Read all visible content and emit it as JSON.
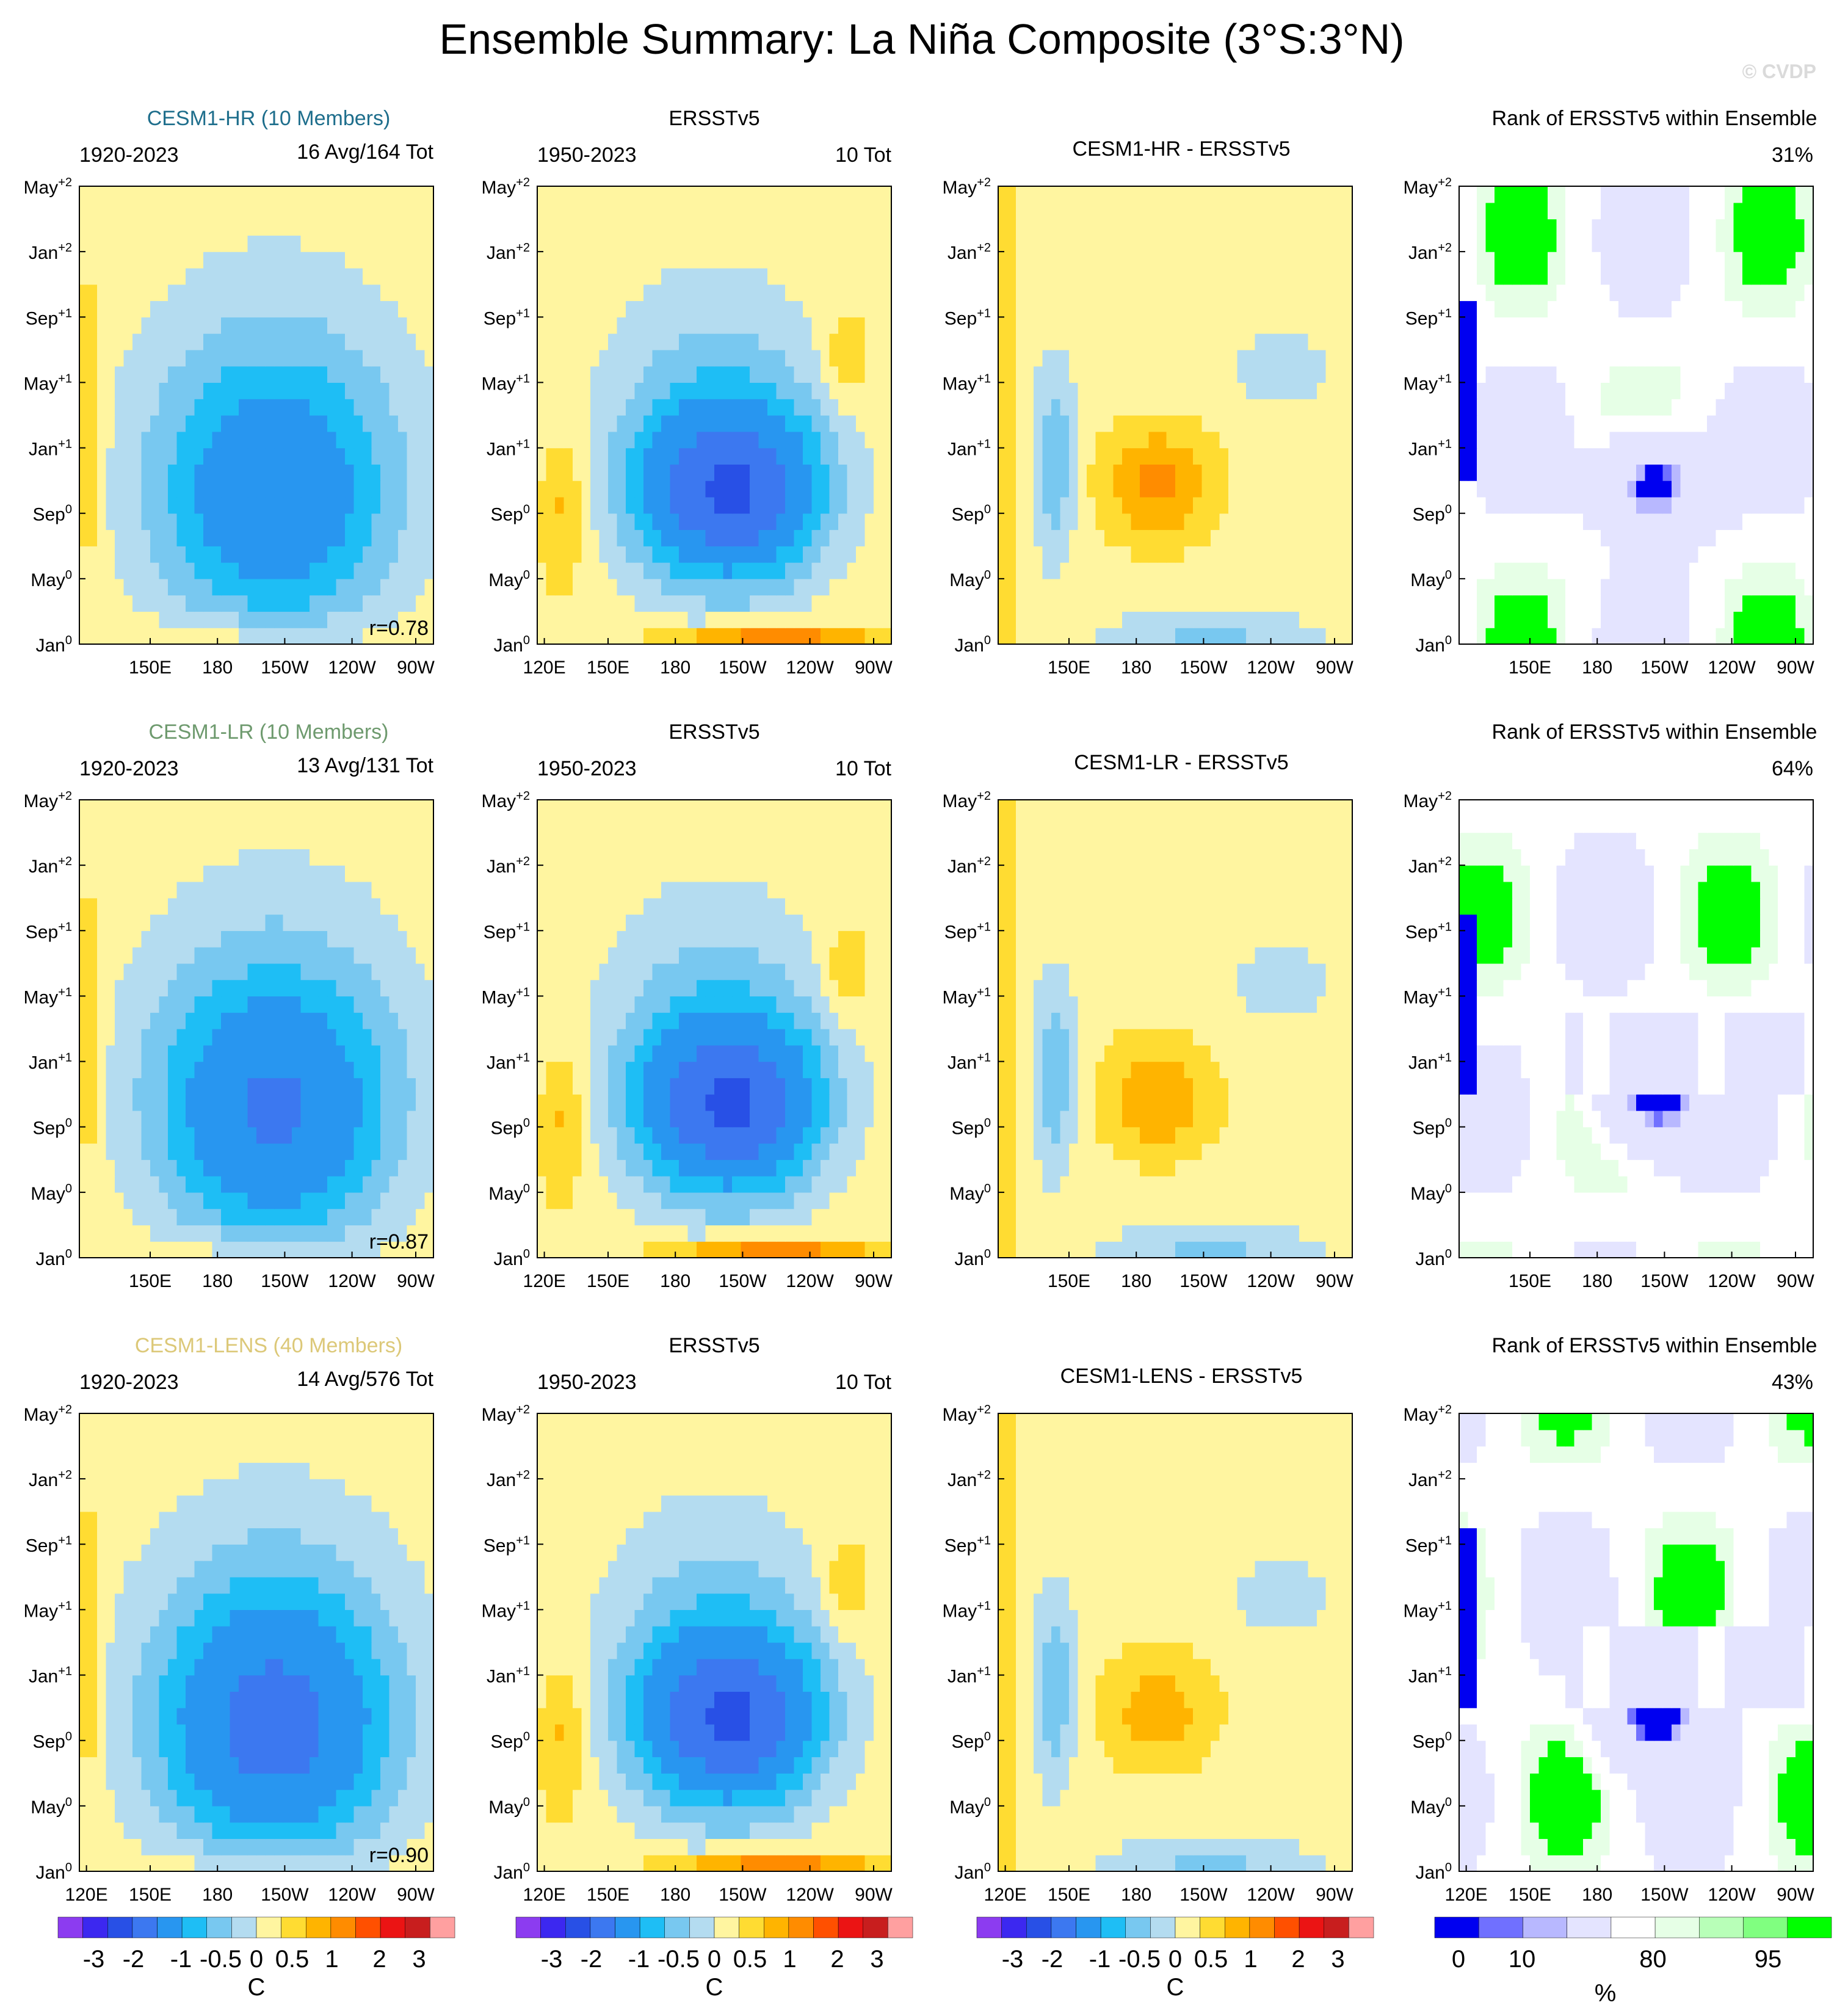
{
  "title": "Ensemble Summary: La Niña Composite (3°S:3°N)",
  "watermark": "© CVDP",
  "colors": {
    "anomaly_scale": [
      "#8c3cf0",
      "#3c28f0",
      "#2850e6",
      "#3c78f0",
      "#2896f0",
      "#1ebef5",
      "#78c8f0",
      "#b4dcf0",
      "#fff5a0",
      "#ffdc32",
      "#ffb400",
      "#ff8c00",
      "#ff5000",
      "#eb1414",
      "#c81e1e",
      "#ffa0a0"
    ],
    "rank_scale": [
      "#0000f0",
      "#7070ff",
      "#b8b8ff",
      "#e4e4ff",
      "#ffffff",
      "#e6ffe6",
      "#b8ffb8",
      "#80ff80",
      "#00ff00"
    ]
  },
  "rows": [
    {
      "model_label": "CESM1-HR (10 Members)",
      "model_color": "#1e6e8c",
      "period": "1920-2023",
      "counts": "16 Avg/164 Tot",
      "pattern_corr": "r=0.78",
      "obs_label": "ERSSTv5",
      "obs_period": "1950-2023",
      "obs_counts": "10 Tot",
      "diff_label": "CESM1-HR - ERSSTv5",
      "rank_label": "Rank of ERSSTv5 within Ensemble",
      "rank_pct": "31%"
    },
    {
      "model_label": "CESM1-LR (10 Members)",
      "model_color": "#6e9a6e",
      "period": "1920-2023",
      "counts": "13 Avg/131 Tot",
      "pattern_corr": "r=0.87",
      "obs_label": "ERSSTv5",
      "obs_period": "1950-2023",
      "obs_counts": "10 Tot",
      "diff_label": "CESM1-LR - ERSSTv5",
      "rank_label": "Rank of ERSSTv5 within Ensemble",
      "rank_pct": "64%"
    },
    {
      "model_label": "CESM1-LENS (40 Members)",
      "model_color": "#dcc878",
      "period": "1920-2023",
      "counts": "14 Avg/576 Tot",
      "pattern_corr": "r=0.90",
      "obs_label": "ERSSTv5",
      "obs_period": "1950-2023",
      "obs_counts": "10 Tot",
      "diff_label": "CESM1-LENS - ERSSTv5",
      "rank_label": "Rank of ERSSTv5 within Ensemble",
      "rank_pct": "43%"
    }
  ],
  "y_ticks": [
    {
      "base": "May",
      "sup": "+2"
    },
    {
      "base": "Jan",
      "sup": "+2"
    },
    {
      "base": "Sep",
      "sup": "+1"
    },
    {
      "base": "May",
      "sup": "+1"
    },
    {
      "base": "Jan",
      "sup": "+1"
    },
    {
      "base": "Sep",
      "sup": "0"
    },
    {
      "base": "May",
      "sup": "0"
    },
    {
      "base": "Jan",
      "sup": "0"
    }
  ],
  "x_ticks_full": [
    "120E",
    "150E",
    "180",
    "150W",
    "120W",
    "90W"
  ],
  "x_ticks_short": [
    "150E",
    "180",
    "150W",
    "120W",
    "90W"
  ],
  "colorbar_ticks": [
    "-3",
    "-2",
    "-1",
    "-0.5",
    "0",
    "0.5",
    "1",
    "2",
    "3"
  ],
  "colorbar_unit": "C",
  "rank_colorbar_ticks": [
    "0",
    "10",
    "80",
    "95"
  ],
  "rank_colorbar_unit": "%",
  "chart_data": {
    "type": "heatmap",
    "title": "Ensemble Summary: La Niña Composite (3°S:3°N)",
    "xlabel": "Longitude",
    "ylabel": "Month (relative to event year)",
    "x_range": [
      "120E",
      "80W"
    ],
    "x_ticks": [
      "120E",
      "150E",
      "180",
      "150W",
      "120W",
      "90W"
    ],
    "y_ticks": [
      "Jan0",
      "May0",
      "Sep0",
      "Jan+1",
      "May+1",
      "Sep+1",
      "Jan+2",
      "May+2"
    ],
    "contour_levels_C": [
      -3,
      -2.5,
      -2,
      -1.5,
      -1,
      -0.75,
      -0.5,
      -0.25,
      0,
      0.25,
      0.5,
      0.75,
      1,
      1.5,
      2,
      2.5,
      3
    ],
    "rank_levels_pct": [
      0,
      5,
      10,
      20,
      80,
      90,
      95,
      100
    ],
    "panels": [
      {
        "name": "CESM1-HR ensemble mean",
        "min_C": -1.5,
        "pattern_corr": 0.78
      },
      {
        "name": "ERSSTv5",
        "min_C": -1.5,
        "max_C": 1.0
      },
      {
        "name": "CESM1-HR - ERSSTv5",
        "min_C": -0.75,
        "max_C": 0.75
      },
      {
        "name": "Rank (HR)",
        "domain_pct": 31
      },
      {
        "name": "CESM1-LR ensemble mean",
        "min_C": -1.5,
        "pattern_corr": 0.87
      },
      {
        "name": "CESM1-LR - ERSSTv5",
        "min_C": -0.75,
        "max_C": 0.75
      },
      {
        "name": "Rank (LR)",
        "domain_pct": 64
      },
      {
        "name": "CESM1-LENS ensemble mean",
        "min_C": -2.0,
        "pattern_corr": 0.9
      },
      {
        "name": "CESM1-LENS - ERSSTv5",
        "min_C": -0.75,
        "max_C": 0.5
      },
      {
        "name": "Rank (LENS)",
        "domain_pct": 43
      }
    ]
  }
}
